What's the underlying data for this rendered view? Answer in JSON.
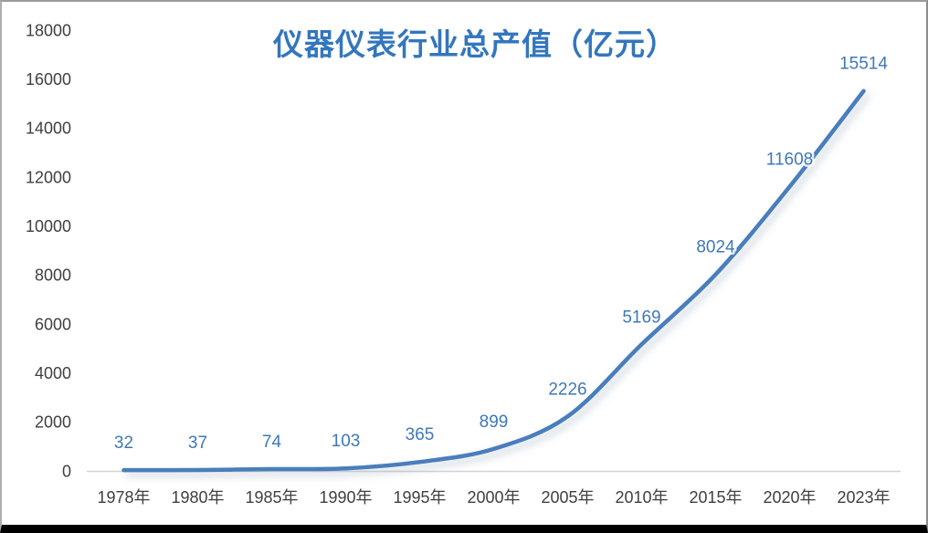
{
  "chart_data": {
    "type": "line",
    "title": "仪器仪表行业总产值（亿元）",
    "categories": [
      "1978年",
      "1980年",
      "1985年",
      "1990年",
      "1995年",
      "2000年",
      "2005年",
      "2010年",
      "2015年",
      "2020年",
      "2023年"
    ],
    "values": [
      32,
      37,
      74,
      103,
      365,
      899,
      2226,
      5169,
      8024,
      11608,
      15514
    ],
    "data_labels": [
      "32",
      "37",
      "74",
      "103",
      "365",
      "899",
      "2226",
      "5169",
      "8024",
      "11608",
      "15514"
    ],
    "ylim": [
      0,
      18000
    ],
    "ytick_step": 2000,
    "yticks": [
      "0",
      "2000",
      "4000",
      "6000",
      "8000",
      "10000",
      "12000",
      "14000",
      "16000",
      "18000"
    ],
    "xlabel": "",
    "ylabel": "",
    "grid": false,
    "legend_position": "none",
    "line_style": "smooth",
    "colors": {
      "line": "#4a7ebc",
      "line_shadow": "#a9b6c6",
      "title": "#3376bd",
      "data_label": "#3f78b8",
      "axis_text": "#404040",
      "axis_line": "#d3d3d3"
    }
  }
}
